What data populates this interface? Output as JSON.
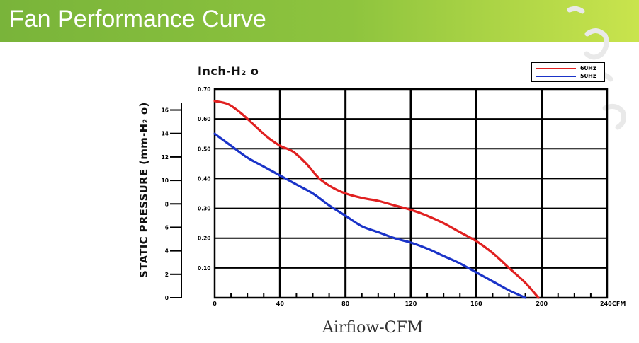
{
  "header": {
    "title": "Fan Performance Curve"
  },
  "colors": {
    "header_start": "#79b43a",
    "header_end": "#c9e44d",
    "series_60hz": "#e02020",
    "series_50hz": "#1a33c8",
    "grid": "#000000"
  },
  "chart_data": {
    "type": "line",
    "title": "",
    "xlabel": "Airfiow-CFM",
    "ylabel": "STATIC PRESSURE (mm-H₂ o)",
    "y2label": "Inch-H₂ o",
    "x_unit": "CFM",
    "xlim": [
      0,
      240
    ],
    "ylim": [
      0,
      0.7
    ],
    "x_ticks": [
      "0",
      "40",
      "80",
      "120",
      "160",
      "200",
      "240"
    ],
    "y_ticks_inch": [
      "0.10",
      "0.20",
      "0.30",
      "0.40",
      "0.50",
      "0.60",
      "0.70"
    ],
    "y_ticks_mm": [
      "0",
      "2",
      "4",
      "6",
      "8",
      "10",
      "12",
      "14",
      "16"
    ],
    "grid": true,
    "legend_position": "top-right",
    "series": [
      {
        "name": "60Hz",
        "color": "#e02020",
        "x": [
          0,
          8,
          16,
          24,
          32,
          40,
          48,
          56,
          64,
          72,
          80,
          90,
          100,
          110,
          120,
          130,
          140,
          150,
          160,
          170,
          180,
          190,
          198
        ],
        "y": [
          0.66,
          0.65,
          0.62,
          0.58,
          0.54,
          0.51,
          0.49,
          0.45,
          0.4,
          0.37,
          0.35,
          0.335,
          0.325,
          0.31,
          0.295,
          0.275,
          0.25,
          0.22,
          0.19,
          0.15,
          0.1,
          0.05,
          0.0
        ]
      },
      {
        "name": "50Hz",
        "color": "#1a33c8",
        "x": [
          0,
          10,
          20,
          30,
          40,
          50,
          60,
          70,
          80,
          90,
          100,
          110,
          120,
          130,
          140,
          150,
          160,
          170,
          180,
          190
        ],
        "y": [
          0.55,
          0.51,
          0.47,
          0.44,
          0.41,
          0.38,
          0.35,
          0.31,
          0.275,
          0.24,
          0.22,
          0.2,
          0.185,
          0.165,
          0.14,
          0.115,
          0.085,
          0.055,
          0.025,
          0.0
        ]
      }
    ]
  }
}
